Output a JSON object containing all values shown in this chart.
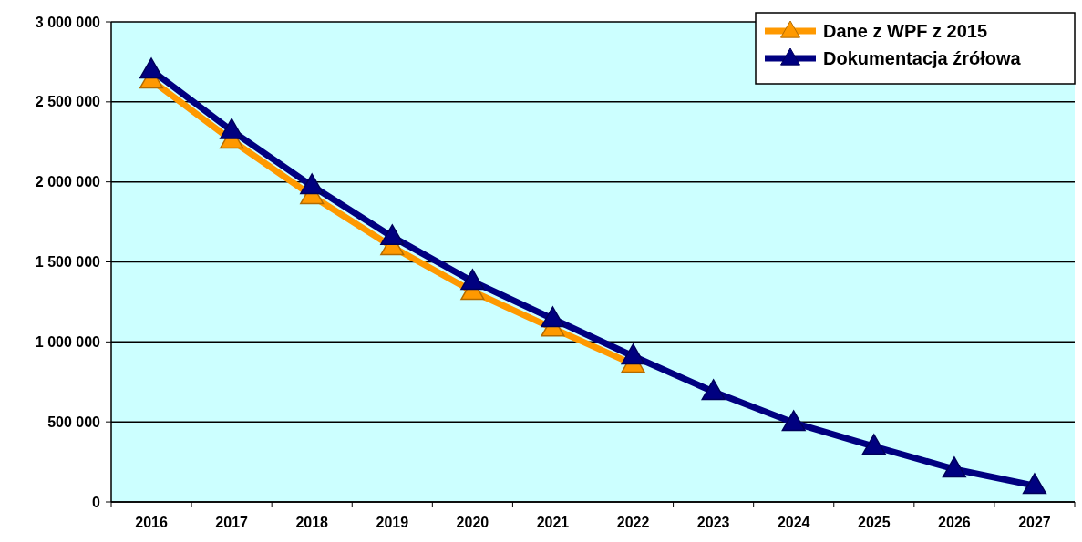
{
  "chart_data": {
    "type": "line",
    "categories": [
      "2016",
      "2017",
      "2018",
      "2019",
      "2020",
      "2021",
      "2022",
      "2023",
      "2024",
      "2025",
      "2026",
      "2027"
    ],
    "series": [
      {
        "name": "Dane z WPF z 2015",
        "color": "#ff9900",
        "values": [
          2636000,
          2260000,
          1913000,
          1594000,
          1315000,
          1085000,
          860000,
          null,
          null,
          null,
          null,
          null
        ]
      },
      {
        "name": "Dokumentacja źrółowa",
        "color": "#000080",
        "values": [
          2698000,
          2320000,
          1975000,
          1657000,
          1378000,
          1144000,
          911000,
          689000,
          495000,
          347000,
          205000,
          102000
        ]
      }
    ],
    "ylim": [
      0,
      3000000
    ],
    "yticks": [
      {
        "value": 0,
        "label": "0"
      },
      {
        "value": 500000,
        "label": "500 000"
      },
      {
        "value": 1000000,
        "label": "1 000 000"
      },
      {
        "value": 1500000,
        "label": "1 500 000"
      },
      {
        "value": 2000000,
        "label": "2 000 000"
      },
      {
        "value": 2500000,
        "label": "2 500 000"
      },
      {
        "value": 3000000,
        "label": "3 000 000"
      }
    ],
    "grid": "y",
    "legend": "top right",
    "marker": "triangle",
    "line_style": "solid"
  }
}
